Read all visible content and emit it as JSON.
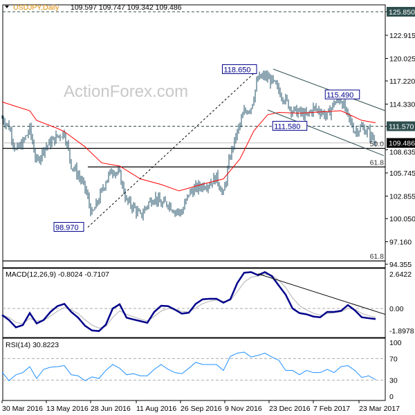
{
  "chart_data": {
    "type": "candlestick",
    "title": "USDJPY,Daily",
    "ohlc_last": {
      "open": "109.597",
      "high": "109.747",
      "low": "109.342",
      "close": "109.486"
    },
    "watermark": "ActionForex.com",
    "price_axis": {
      "range": [
        94.355,
        125.85
      ],
      "ticks": [
        "125.850",
        "122.915",
        "120.025",
        "117.220",
        "114.330",
        "111.570",
        "108.635",
        "105.745",
        "102.855",
        "100.050",
        "97.160",
        "94.355"
      ],
      "highlighted": [
        {
          "label": "125.850",
          "value": 125.85,
          "style": "level"
        },
        {
          "label": "111.570",
          "value": 111.57,
          "style": "level"
        },
        {
          "label": "109.486",
          "value": 109.486,
          "style": "current"
        }
      ]
    },
    "x_axis": {
      "days_per_point": 5,
      "tick_labels": [
        {
          "label": "30 Mar 2016",
          "day": 0
        },
        {
          "label": "13 May 2016",
          "day": 32
        },
        {
          "label": "28 Jun 2016",
          "day": 64
        },
        {
          "label": "11 Aug 2016",
          "day": 97
        },
        {
          "label": "26 Sep 2016",
          "day": 129
        },
        {
          "label": "9 Nov 2016",
          "day": 161
        },
        {
          "label": "23 Dec 2016",
          "day": 193
        },
        {
          "label": "7 Feb 2017",
          "day": 225
        },
        {
          "label": "23 Mar 2017",
          "day": 258
        }
      ]
    },
    "weekly_close": [
      112.6,
      111.5,
      108.5,
      109.5,
      111.2,
      107.0,
      108.8,
      109.5,
      110.3,
      110.8,
      106.8,
      105.5,
      103.8,
      100.5,
      102.5,
      104.8,
      106.2,
      105.5,
      102.2,
      101.5,
      100.3,
      101.8,
      102.8,
      101.8,
      102.0,
      101.0,
      100.8,
      103.2,
      103.8,
      104.2,
      104.5,
      105.2,
      103.0,
      108.0,
      110.8,
      113.3,
      114.0,
      117.5,
      117.8,
      117.2,
      116.0,
      114.8,
      113.5,
      113.3,
      112.8,
      113.8,
      113.5,
      112.8,
      114.5,
      114.9,
      112.7,
      111.0,
      111.4,
      110.8,
      109.486
    ],
    "moving_average": [
      [
        0,
        114.6
      ],
      [
        20,
        113.5
      ],
      [
        25,
        112.3
      ],
      [
        40,
        111.3
      ],
      [
        45,
        110.9
      ],
      [
        60,
        109.0
      ],
      [
        72,
        107.0
      ],
      [
        85,
        106.6
      ],
      [
        100,
        105.0
      ],
      [
        115,
        104.3
      ],
      [
        128,
        103.5
      ],
      [
        144,
        104.3
      ],
      [
        160,
        105.0
      ],
      [
        172,
        107.5
      ],
      [
        182,
        111.0
      ],
      [
        192,
        113.0
      ],
      [
        200,
        113.3
      ],
      [
        215,
        113.2
      ],
      [
        235,
        113.4
      ],
      [
        245,
        113.5
      ],
      [
        260,
        112.3
      ],
      [
        270,
        112.0
      ]
    ],
    "annotations": [
      {
        "label": "118.650",
        "value": 118.65,
        "day": 185
      },
      {
        "label": "115.490",
        "value": 115.49,
        "day": 246
      },
      {
        "label": "111.580",
        "value": 111.58,
        "day": 208
      },
      {
        "label": "98.970",
        "value": 98.97,
        "day": 62
      }
    ],
    "fibonacci": [
      {
        "label": "50.0",
        "value": 108.81
      },
      {
        "label": "61.8",
        "value": 106.49
      },
      {
        "label": "61.8",
        "value": 94.77
      }
    ],
    "channel": {
      "upper": [
        [
          196,
          118.7
        ],
        [
          277,
          113.5
        ]
      ],
      "lower": [
        [
          192,
          113.6
        ],
        [
          276,
          107.9
        ]
      ]
    },
    "macd": {
      "label": "MACD(12,26,9) -0.8024 -0.7107",
      "ticks": [
        "2.6422",
        "0.00",
        "-1.8978"
      ],
      "range": [
        -1.8978,
        2.6422
      ],
      "values": [
        -0.49,
        -0.88,
        -1.44,
        -1.26,
        -0.35,
        -1.14,
        -0.88,
        -0.26,
        0.18,
        0.35,
        -0.26,
        -0.7,
        -1.32,
        -1.67,
        -1.72,
        -1.23,
        0,
        0.32,
        -0.7,
        -0.84,
        -0.96,
        -1.09,
        -0.26,
        0.21,
        0.18,
        -0.09,
        -0.39,
        -0.32,
        0.35,
        0.7,
        0.74,
        0.74,
        0.44,
        0.7,
        1.93,
        2.72,
        2.77,
        2.54,
        2.77,
        2.46,
        1.75,
        1.05,
        0,
        -0.35,
        -0.44,
        -0.61,
        -0.67,
        -0.26,
        -0.26,
        -0.18,
        0.26,
        -0.14,
        -0.67,
        -0.74,
        -0.8
      ],
      "trendline": [
        [
          185,
          2.64
        ],
        [
          277,
          -0.45
        ]
      ]
    },
    "rsi": {
      "label": "RSI(14) 30.8223",
      "ticks": [
        "100",
        "70",
        "30",
        "0"
      ],
      "levels": [
        70,
        30
      ],
      "values": [
        45,
        29,
        40,
        44,
        55,
        33,
        50,
        54,
        55,
        57,
        40,
        38,
        29,
        36,
        33,
        48,
        59,
        52,
        40,
        42,
        38,
        38,
        50,
        59,
        50,
        44,
        42,
        52,
        63,
        59,
        59,
        59,
        48,
        74,
        80,
        82,
        73,
        76,
        80,
        73,
        67,
        48,
        48,
        40,
        48,
        44,
        44,
        50,
        44,
        55,
        57,
        48,
        35,
        38,
        31
      ]
    },
    "colors": {
      "bars": "#1f4f66",
      "ma": "#ff0000",
      "macd": "#00008b",
      "signal": "#b0b0b0",
      "rsi": "#1e90ff",
      "label_box": "#00008b",
      "level_tag": "#2f4f4f"
    }
  }
}
